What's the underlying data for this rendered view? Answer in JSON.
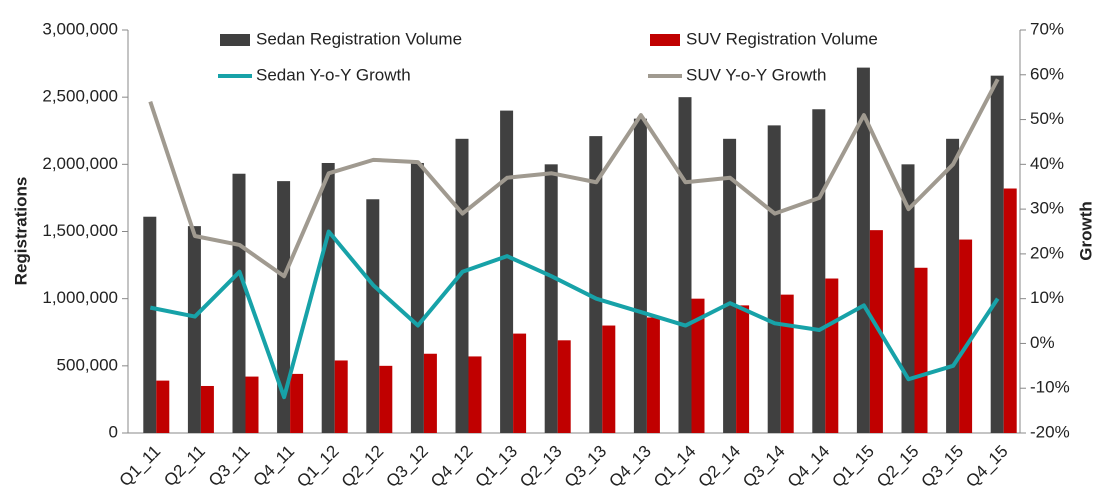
{
  "chart_data": {
    "type": "bar_line",
    "y_label": "Registrations",
    "y2_label": "Growth",
    "categories": [
      "Q1_11",
      "Q2_11",
      "Q3_11",
      "Q4_11",
      "Q1_12",
      "Q2_12",
      "Q3_12",
      "Q4_12",
      "Q1_13",
      "Q2_13",
      "Q3_13",
      "Q4_13",
      "Q1_14",
      "Q2_14",
      "Q3_14",
      "Q4_14",
      "Q1_15",
      "Q2_15",
      "Q3_15",
      "Q4_15"
    ],
    "series": [
      {
        "name": "Sedan Registration Volume",
        "type": "bar",
        "color": "#404040",
        "values": [
          1610000,
          1540000,
          1930000,
          1875000,
          2010000,
          1740000,
          2010000,
          2190000,
          2400000,
          2000000,
          2210000,
          2340000,
          2500000,
          2190000,
          2290000,
          2410000,
          2720000,
          2000000,
          2190000,
          2660000
        ]
      },
      {
        "name": "SUV Registration Volume",
        "type": "bar",
        "color": "#c00000",
        "values": [
          390000,
          350000,
          420000,
          440000,
          540000,
          500000,
          590000,
          570000,
          740000,
          690000,
          800000,
          860000,
          1000000,
          950000,
          1030000,
          1150000,
          1510000,
          1230000,
          1440000,
          1820000
        ]
      },
      {
        "name": "Sedan Y-o-Y Growth",
        "type": "line",
        "axis": "y2",
        "color": "#17a2a8",
        "values": [
          8,
          6,
          16,
          -12,
          25,
          13,
          4,
          16,
          19.5,
          15,
          10,
          7,
          4,
          9,
          4.5,
          3,
          8.5,
          -8,
          -5,
          10
        ]
      },
      {
        "name": "SUV Y-o-Y Growth",
        "type": "line",
        "axis": "y2",
        "color": "#a09a90",
        "values": [
          54,
          24,
          22,
          15,
          38,
          41,
          40.5,
          29,
          37,
          38,
          36,
          51,
          36,
          37,
          29,
          32.5,
          51,
          30,
          40,
          59
        ]
      }
    ],
    "ylim": [
      0,
      3000000
    ],
    "yticks": [
      0,
      {
        "value": 500000,
        "label": "500,000"
      },
      {
        "value": 1000000,
        "label": "1,000,000"
      },
      {
        "value": 1500000,
        "label": "1,500,000"
      },
      {
        "value": 2000000,
        "label": "2,000,000"
      },
      {
        "value": 2500000,
        "label": "2,500,000"
      },
      {
        "value": 3000000,
        "label": "3,000,000"
      }
    ],
    "y2lim": [
      -20,
      70
    ],
    "y2ticks": [
      {
        "value": -20,
        "label": "-20%"
      },
      {
        "value": -10,
        "label": "-10%"
      },
      {
        "value": 0,
        "label": "0%"
      },
      {
        "value": 10,
        "label": "10%"
      },
      {
        "value": 20,
        "label": "20%"
      },
      {
        "value": 30,
        "label": "30%"
      },
      {
        "value": 40,
        "label": "40%"
      },
      {
        "value": 50,
        "label": "50%"
      },
      {
        "value": 60,
        "label": "60%"
      },
      {
        "value": 70,
        "label": "70%"
      }
    ]
  }
}
